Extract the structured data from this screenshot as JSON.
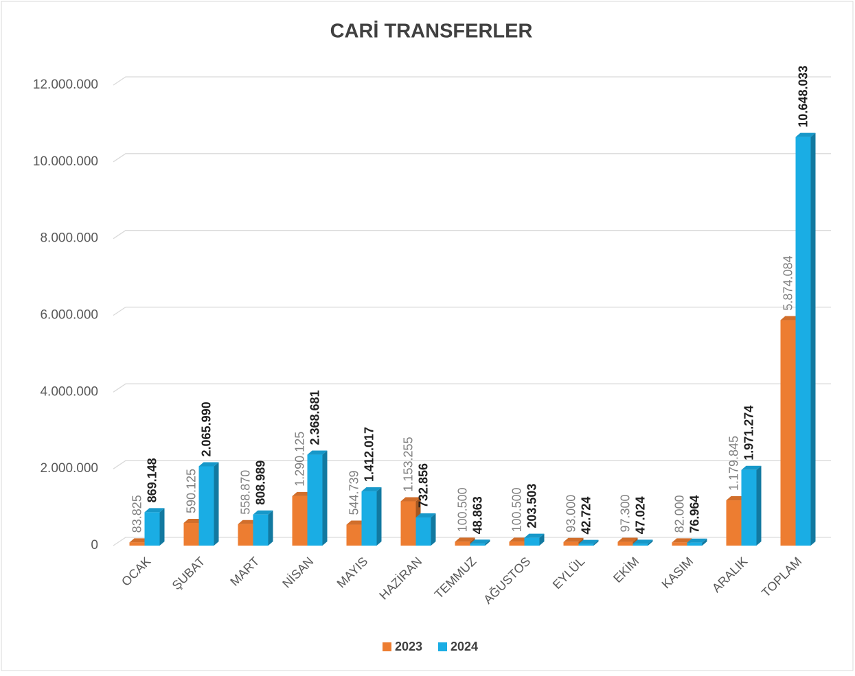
{
  "chart_data": {
    "type": "bar3d",
    "title": "CARİ TRANSFERLER",
    "categories": [
      "OCAK",
      "ŞUBAT",
      "MART",
      "NİSAN",
      "MAYIS",
      "HAZİRAN",
      "TEMMUZ",
      "AĞUSTOS",
      "EYLÜL",
      "EKİM",
      "KASIM",
      "ARALIK",
      "TOPLAM"
    ],
    "series": [
      {
        "name": "2023",
        "color": "#ed7d31",
        "values": [
          83825,
          590125,
          558870,
          1290125,
          544739,
          1153255,
          100500,
          100500,
          93000,
          97300,
          82000,
          1179845,
          5874084
        ],
        "value_labels": [
          "83.825",
          "590.125",
          "558.870",
          "1.290.125",
          "544.739",
          "1.153.255",
          "100.500",
          "100.500",
          "93.000",
          "97.300",
          "82.000",
          "1.179.845",
          "5.874.084"
        ]
      },
      {
        "name": "2024",
        "color": "#1aade4",
        "values": [
          869148,
          2065990,
          808989,
          2368681,
          1412017,
          732856,
          48863,
          203503,
          42724,
          47024,
          76964,
          1971274,
          10648033
        ],
        "value_labels": [
          "869.148",
          "2.065.990",
          "808.989",
          "2.368.681",
          "1.412.017",
          "732.856",
          "48.863",
          "203.503",
          "42.724",
          "47.024",
          "76.964",
          "1.971.274",
          "10.648.033"
        ]
      }
    ],
    "ylim": [
      0,
      12000000
    ],
    "yticks": [
      0,
      {
        "value": 2000000,
        "label": "2.000.000"
      },
      {
        "value": 4000000,
        "label": "4.000.000"
      },
      {
        "value": 6000000,
        "label": "6.000.000"
      },
      {
        "value": 8000000,
        "label": "8.000.000"
      },
      {
        "value": 10000000,
        "label": "10.000.000"
      },
      {
        "value": 12000000,
        "label": "12.000.000"
      }
    ],
    "grid": true,
    "legend": "bottom"
  }
}
